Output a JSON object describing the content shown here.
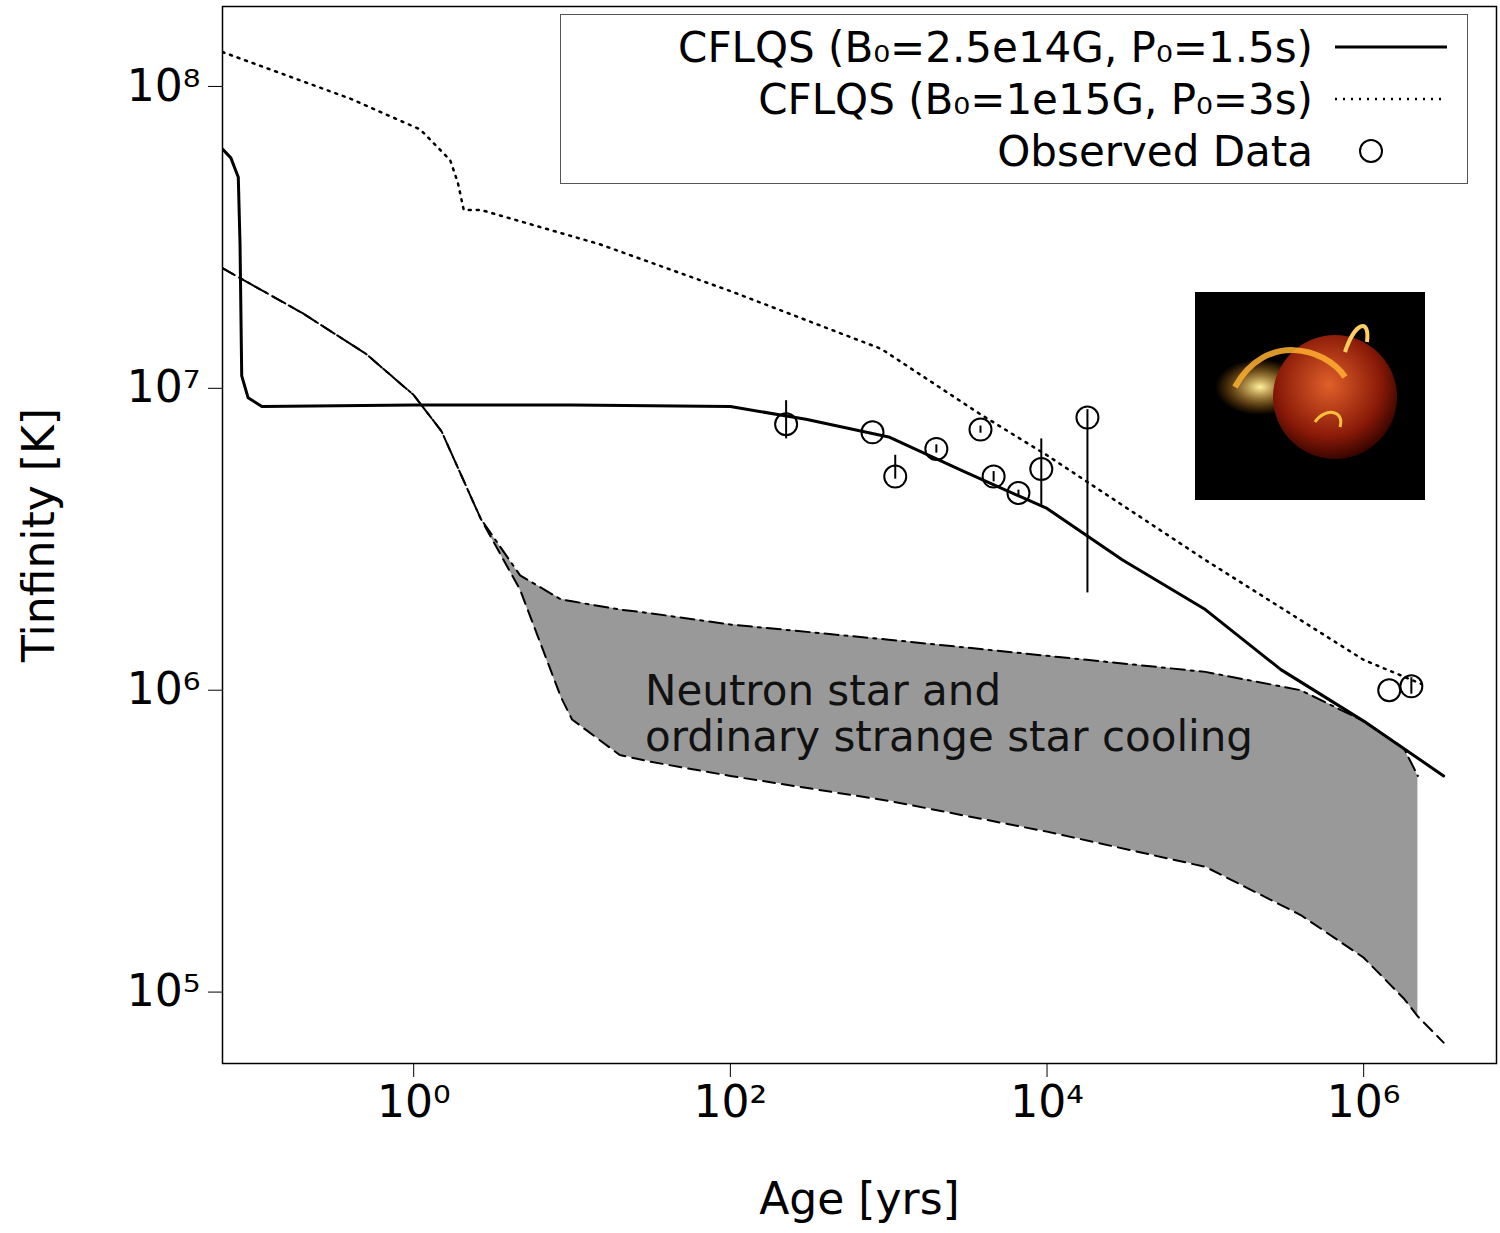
{
  "chart_data": {
    "type": "line",
    "xlabel": "Age [yrs]",
    "ylabel": "Tinfinity [K]",
    "log": true,
    "legend": "top-right",
    "xlim": [
      0.062,
      6900000
    ],
    "ylim": [
      58000,
      184000000
    ],
    "xticks": [
      {
        "value": 1,
        "label": "10⁰"
      },
      {
        "value": 100,
        "label": "10²"
      },
      {
        "value": 10000,
        "label": "10⁴"
      },
      {
        "value": 1000000,
        "label": "10⁶"
      }
    ],
    "yticks": [
      {
        "value": 100000,
        "label": "10⁵"
      },
      {
        "value": 1000000,
        "label": "10⁶"
      },
      {
        "value": 10000000,
        "label": "10⁷"
      },
      {
        "value": 100000000,
        "label": "10⁸"
      }
    ],
    "series": [
      {
        "name": "CFLQS (B₀=2.5e14G, P₀=1.5s)",
        "type": "line",
        "color": "#000000",
        "line_style": "solid",
        "x": [
          0.062,
          0.07,
          0.078,
          0.08,
          0.082,
          0.09,
          0.11,
          1,
          10,
          100,
          300,
          1000,
          3000,
          10000,
          30000,
          100000,
          300000,
          1000000,
          3200000
        ],
        "values": [
          62000000,
          58000000,
          50000000,
          30000000,
          11000000,
          9300000,
          8700000,
          8800000,
          8800000,
          8700000,
          7900000,
          6900000,
          5300000,
          4000000,
          2700000,
          1850000,
          1170000,
          790000,
          520000
        ]
      },
      {
        "name": "CFLQS (B₀=1e15G, P₀=3s)",
        "type": "line",
        "color": "#000000",
        "line_style": "dotted",
        "x": [
          0.062,
          0.4,
          1.1,
          1.7,
          1.9,
          2.07,
          2.65,
          15,
          100,
          900,
          3800,
          10000,
          100000,
          1000000,
          2300000
        ],
        "values": [
          130000000,
          91000000,
          72000000,
          57000000,
          48000000,
          39000000,
          39000000,
          30000000,
          21000000,
          13500000,
          8200000,
          6000000,
          2700000,
          1260000,
          1050000
        ]
      },
      {
        "name": "Observed Data",
        "type": "scatter",
        "color": "#000000",
        "marker": "circle",
        "x": [
          225,
          790,
          1100,
          2000,
          3800,
          4600,
          6600,
          9200,
          18000,
          1450000,
          2000000
        ],
        "values": [
          7600000,
          7150000,
          5100000,
          6300000,
          7300000,
          5100000,
          4500000,
          5400000,
          8000000,
          1000000,
          1030000
        ],
        "y_low": [
          6800000,
          null,
          5000000,
          6100000,
          7100000,
          4900000,
          4400000,
          4100000,
          2100000,
          null,
          970000
        ],
        "y_high": [
          9100000,
          null,
          6000000,
          6500000,
          7500000,
          5300000,
          4600000,
          6800000,
          8500000,
          null,
          1100000
        ]
      }
    ],
    "band": {
      "label": [
        "Neutron star and",
        "ordinary strange star cooling"
      ],
      "color": "#999999",
      "x": [
        0.062,
        0.2,
        0.5,
        1,
        1.5,
        2.65,
        4.7,
        8.5,
        10,
        20,
        31,
        100,
        1000,
        10000,
        100000,
        400000,
        1000000,
        1800000,
        2200000,
        3200000
      ],
      "upper": {
        "line_style": "dashdot",
        "values": [
          25000000,
          17700000,
          13000000,
          9500000,
          7200000,
          3700000,
          2400000,
          2000000,
          1970000,
          1850000,
          1800000,
          1650000,
          1470000,
          1300000,
          1150000,
          1000000,
          790000,
          640000,
          520000,
          null
        ]
      },
      "lower": {
        "line_style": "dashed",
        "values": [
          25000000,
          17700000,
          13000000,
          9500000,
          7200000,
          3700000,
          2150000,
          950000,
          800000,
          610000,
          580000,
          520000,
          430000,
          340000,
          260000,
          180000,
          130000,
          95000,
          83000,
          68000
        ]
      }
    }
  }
}
